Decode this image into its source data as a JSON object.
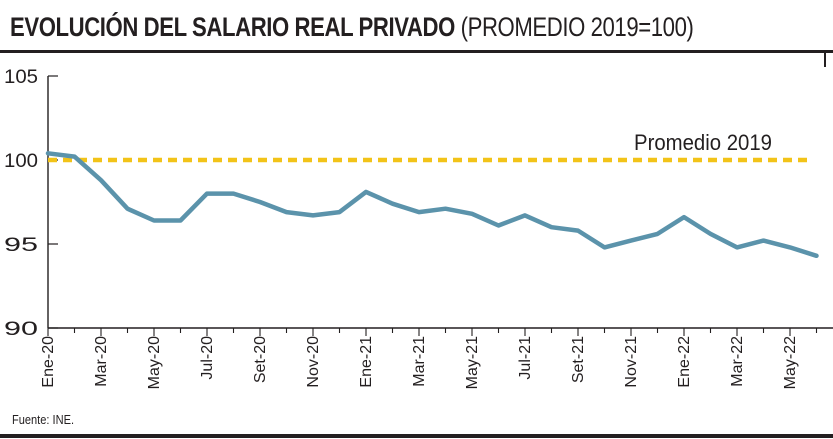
{
  "header": {
    "title_bold": "EVOLUCIÓN DEL SALARIO REAL PRIVADO",
    "title_light": "(PROMEDIO 2019=100)"
  },
  "footer": {
    "source": "Fuente: INE."
  },
  "colors": {
    "series": "#5b93ab",
    "reference": "#f2c318",
    "text": "#231f20",
    "axis": "#231f20"
  },
  "chart_data": {
    "type": "line",
    "title": "EVOLUCIÓN DEL SALARIO REAL PRIVADO (PROMEDIO 2019=100)",
    "xlabel": "",
    "ylabel": "",
    "ylim": [
      90,
      105
    ],
    "yticks": [
      90,
      95,
      100,
      105
    ],
    "grid": false,
    "x": [
      "Ene-20",
      "Feb-20",
      "Mar-20",
      "Abr-20",
      "May-20",
      "Jun-20",
      "Jul-20",
      "Ago-20",
      "Set-20",
      "Oct-20",
      "Nov-20",
      "Dic-20",
      "Ene-21",
      "Feb-21",
      "Mar-21",
      "Abr-21",
      "May-21",
      "Jun-21",
      "Jul-21",
      "Ago-21",
      "Set-21",
      "Oct-21",
      "Nov-21",
      "Dic-21",
      "Ene-22",
      "Feb-22",
      "Mar-22",
      "Abr-22",
      "May-22",
      "Jun-22"
    ],
    "x_tick_labels": [
      "Ene-20",
      "Mar-20",
      "May-20",
      "Jul-20",
      "Set-20",
      "Nov-20",
      "Ene-21",
      "Mar-21",
      "May-21",
      "Jul-21",
      "Set-21",
      "Nov-21",
      "Ene-22",
      "Mar-22",
      "May-22"
    ],
    "series": [
      {
        "name": "Salario real privado",
        "values": [
          100.4,
          100.2,
          98.8,
          97.1,
          96.4,
          96.4,
          98.0,
          98.0,
          97.5,
          96.9,
          96.7,
          96.9,
          98.1,
          97.4,
          96.9,
          97.1,
          96.8,
          96.1,
          96.7,
          96.0,
          95.8,
          94.8,
          95.2,
          95.6,
          96.6,
          95.6,
          94.8,
          95.2,
          94.8,
          94.3
        ]
      }
    ],
    "reference_line": {
      "value": 100,
      "label": "Promedio 2019"
    }
  }
}
